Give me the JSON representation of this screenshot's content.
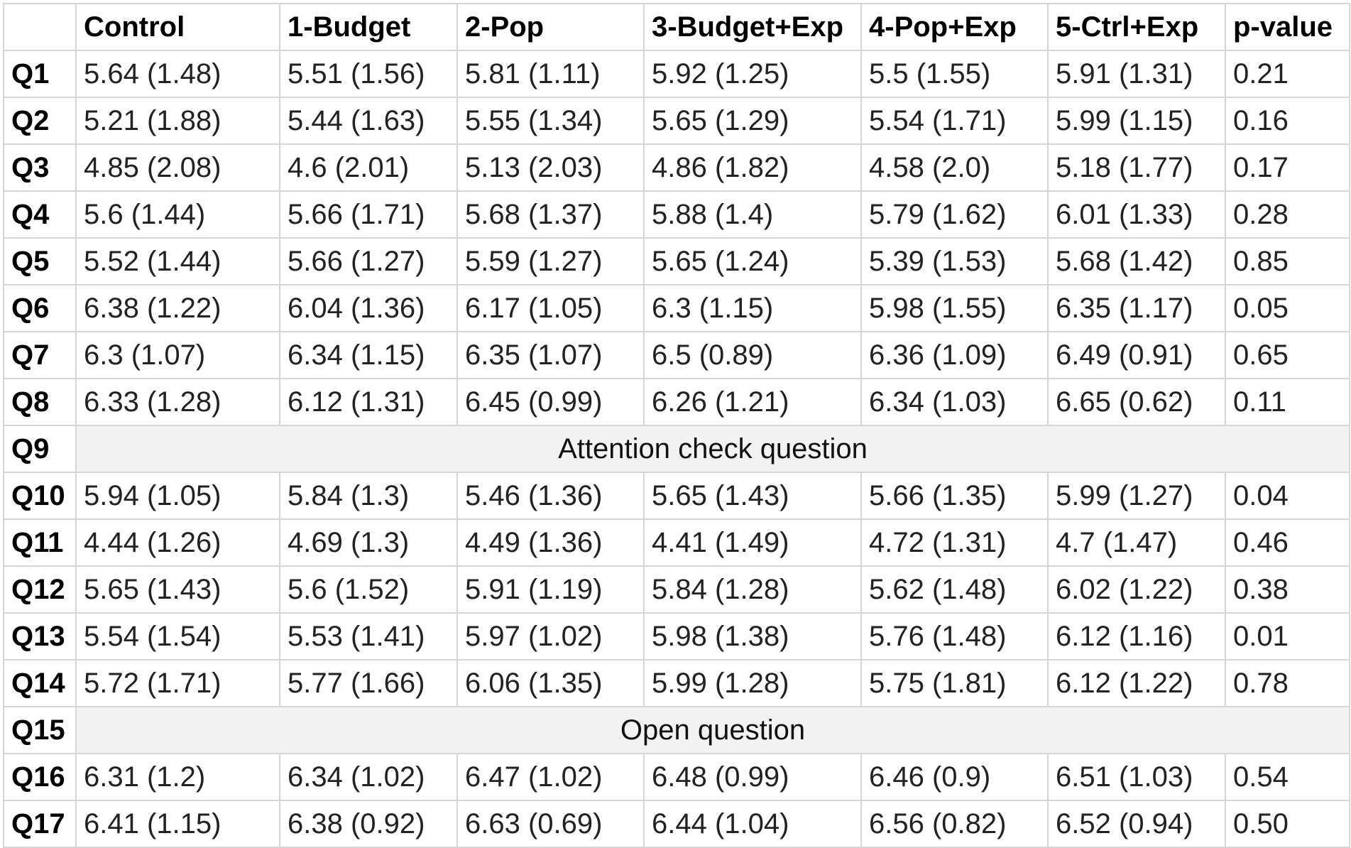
{
  "table": {
    "headers": [
      "",
      "Control",
      "1-Budget",
      "2-Pop",
      "3-Budget+Exp",
      "4-Pop+Exp",
      "5-Ctrl+Exp",
      "p-value"
    ],
    "rows": [
      {
        "label": "Q1",
        "cells": [
          "5.64 (1.48)",
          "5.51 (1.56)",
          "5.81 (1.11)",
          "5.92 (1.25)",
          "5.5 (1.55)",
          "5.91 (1.31)",
          "0.21"
        ]
      },
      {
        "label": "Q2",
        "cells": [
          "5.21 (1.88)",
          "5.44 (1.63)",
          "5.55 (1.34)",
          "5.65 (1.29)",
          "5.54 (1.71)",
          "5.99 (1.15)",
          "0.16"
        ]
      },
      {
        "label": "Q3",
        "cells": [
          "4.85 (2.08)",
          "4.6 (2.01)",
          "5.13 (2.03)",
          "4.86 (1.82)",
          "4.58 (2.0)",
          "5.18 (1.77)",
          "0.17"
        ]
      },
      {
        "label": "Q4",
        "cells": [
          "5.6 (1.44)",
          "5.66 (1.71)",
          "5.68 (1.37)",
          "5.88 (1.4)",
          "5.79 (1.62)",
          "6.01 (1.33)",
          "0.28"
        ]
      },
      {
        "label": "Q5",
        "cells": [
          "5.52 (1.44)",
          "5.66 (1.27)",
          "5.59 (1.27)",
          "5.65 (1.24)",
          "5.39 (1.53)",
          "5.68 (1.42)",
          "0.85"
        ]
      },
      {
        "label": "Q6",
        "cells": [
          "6.38 (1.22)",
          "6.04 (1.36)",
          "6.17 (1.05)",
          "6.3 (1.15)",
          "5.98 (1.55)",
          "6.35 (1.17)",
          "0.05"
        ]
      },
      {
        "label": "Q7",
        "cells": [
          "6.3 (1.07)",
          "6.34 (1.15)",
          "6.35 (1.07)",
          "6.5 (0.89)",
          "6.36 (1.09)",
          "6.49 (0.91)",
          "0.65"
        ]
      },
      {
        "label": "Q8",
        "cells": [
          "6.33 (1.28)",
          "6.12 (1.31)",
          "6.45 (0.99)",
          "6.26 (1.21)",
          "6.34 (1.03)",
          "6.65 (0.62)",
          "0.11"
        ]
      },
      {
        "label": "Q9",
        "merged": "Attention check question"
      },
      {
        "label": "Q10",
        "cells": [
          "5.94 (1.05)",
          "5.84 (1.3)",
          "5.46 (1.36)",
          "5.65 (1.43)",
          "5.66 (1.35)",
          "5.99 (1.27)",
          "0.04"
        ]
      },
      {
        "label": "Q11",
        "cells": [
          "4.44 (1.26)",
          "4.69 (1.3)",
          "4.49 (1.36)",
          "4.41 (1.49)",
          "4.72 (1.31)",
          "4.7 (1.47)",
          "0.46"
        ]
      },
      {
        "label": "Q12",
        "cells": [
          "5.65 (1.43)",
          "5.6 (1.52)",
          "5.91 (1.19)",
          "5.84 (1.28)",
          "5.62 (1.48)",
          "6.02 (1.22)",
          "0.38"
        ]
      },
      {
        "label": "Q13",
        "cells": [
          "5.54 (1.54)",
          "5.53 (1.41)",
          "5.97 (1.02)",
          "5.98 (1.38)",
          "5.76 (1.48)",
          "6.12 (1.16)",
          "0.01"
        ]
      },
      {
        "label": "Q14",
        "cells": [
          "5.72 (1.71)",
          "5.77 (1.66)",
          "6.06 (1.35)",
          "5.99 (1.28)",
          "5.75 (1.81)",
          "6.12 (1.22)",
          "0.78"
        ]
      },
      {
        "label": "Q15",
        "merged": "Open question"
      },
      {
        "label": "Q16",
        "cells": [
          "6.31 (1.2)",
          "6.34 (1.02)",
          "6.47 (1.02)",
          "6.48 (0.99)",
          "6.46 (0.9)",
          "6.51 (1.03)",
          "0.54"
        ]
      },
      {
        "label": "Q17",
        "cells": [
          "6.41 (1.15)",
          "6.38 (0.92)",
          "6.63 (0.69)",
          "6.44 (1.04)",
          "6.56 (0.82)",
          "6.52 (0.94)",
          "0.50"
        ]
      }
    ]
  }
}
